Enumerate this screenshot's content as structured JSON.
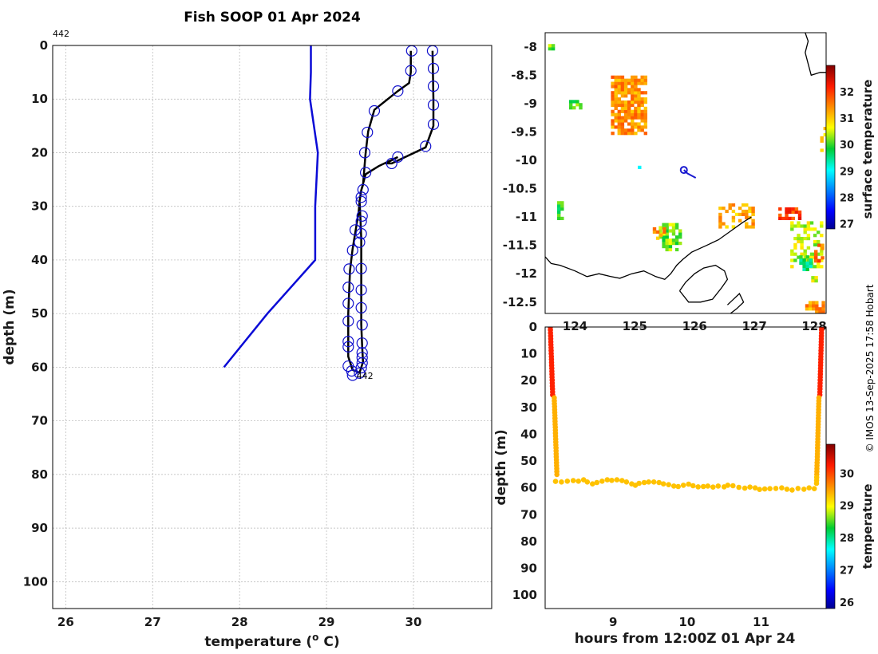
{
  "chart_data": [
    {
      "id": "profile",
      "type": "line",
      "title": "Fish SOOP 01 Apr 2024",
      "xlabel_main": "temperature (",
      "xlabel_sup": "o",
      "xlabel_tail": " C)",
      "ylabel": "depth (m)",
      "xlim": [
        25.85,
        30.9
      ],
      "ylim": [
        0,
        105
      ],
      "xticks": [
        26,
        27,
        28,
        29,
        30
      ],
      "yticks": [
        0,
        10,
        20,
        30,
        40,
        50,
        60,
        70,
        80,
        90,
        100
      ],
      "tag_top": "442",
      "tag_bottom": "442",
      "tag_bottom_pos": [
        29.4,
        61
      ],
      "colors": {
        "climatology": "#0a0ad6",
        "profile": "#000000",
        "markers": "#1010cc"
      },
      "series": [
        {
          "name": "climatology",
          "points": [
            [
              28.82,
              0
            ],
            [
              28.82,
              5
            ],
            [
              28.81,
              10
            ],
            [
              28.9,
              20
            ],
            [
              28.87,
              30
            ],
            [
              28.87,
              40
            ],
            [
              28.32,
              50
            ],
            [
              27.82,
              60
            ]
          ]
        },
        {
          "name": "profile",
          "points": [
            [
              30.22,
              1
            ],
            [
              30.23,
              10
            ],
            [
              30.23,
              15
            ],
            [
              30.14,
              19
            ],
            [
              29.75,
              22
            ],
            [
              29.68,
              22
            ],
            [
              29.82,
              20.8
            ],
            [
              29.6,
              22.5
            ],
            [
              29.45,
              24
            ],
            [
              29.4,
              27
            ],
            [
              29.38,
              29
            ],
            [
              29.37,
              31
            ],
            [
              29.34,
              34
            ],
            [
              29.3,
              38
            ],
            [
              29.27,
              42
            ],
            [
              29.26,
              46
            ],
            [
              29.25,
              50
            ],
            [
              29.25,
              54
            ],
            [
              29.25,
              58
            ],
            [
              29.3,
              60.5
            ],
            [
              29.38,
              61
            ],
            [
              29.42,
              59
            ],
            [
              29.41,
              56
            ],
            [
              29.4,
              52
            ],
            [
              29.4,
              48
            ],
            [
              29.4,
              44
            ],
            [
              29.4,
              40
            ],
            [
              29.4,
              36
            ],
            [
              29.39,
              32
            ],
            [
              29.38,
              29
            ],
            [
              29.4,
              27
            ],
            [
              29.42,
              26
            ],
            [
              29.45,
              20
            ],
            [
              29.48,
              16
            ],
            [
              29.55,
              12
            ],
            [
              29.82,
              8.5
            ],
            [
              29.95,
              7
            ],
            [
              29.97,
              5
            ],
            [
              29.97,
              1
            ]
          ]
        },
        {
          "name": "markers",
          "points": [
            [
              30.22,
              1
            ],
            [
              30.23,
              4.3
            ],
            [
              30.23,
              7.6
            ],
            [
              30.23,
              11.1
            ],
            [
              30.23,
              14.7
            ],
            [
              30.14,
              18.8
            ],
            [
              29.82,
              20.8
            ],
            [
              29.75,
              22
            ],
            [
              29.45,
              23.7
            ],
            [
              29.42,
              26.9
            ],
            [
              29.4,
              28.3
            ],
            [
              29.4,
              29.1
            ],
            [
              29.41,
              31.8
            ],
            [
              29.4,
              32.8
            ],
            [
              29.33,
              34.4
            ],
            [
              29.4,
              35.1
            ],
            [
              29.38,
              36.7
            ],
            [
              29.3,
              38.2
            ],
            [
              29.4,
              41.6
            ],
            [
              29.26,
              41.7
            ],
            [
              29.25,
              45.1
            ],
            [
              29.4,
              45.6
            ],
            [
              29.25,
              48.1
            ],
            [
              29.4,
              48.9
            ],
            [
              29.25,
              51.4
            ],
            [
              29.41,
              52.1
            ],
            [
              29.25,
              55.2
            ],
            [
              29.41,
              55.5
            ],
            [
              29.25,
              56.2
            ],
            [
              29.41,
              57.3
            ],
            [
              29.41,
              58.2
            ],
            [
              29.41,
              59.2
            ],
            [
              29.4,
              60.1
            ],
            [
              29.25,
              59.8
            ],
            [
              29.29,
              60.7
            ],
            [
              29.3,
              61.5
            ],
            [
              29.38,
              61.1
            ],
            [
              29.44,
              20
            ],
            [
              29.47,
              16.2
            ],
            [
              29.55,
              12.2
            ],
            [
              29.82,
              8.5
            ],
            [
              29.97,
              4.7
            ],
            [
              29.98,
              1
            ]
          ]
        }
      ]
    },
    {
      "id": "map",
      "type": "heatmap",
      "xlim": [
        123.5,
        128.2
      ],
      "ylim": [
        -12.7,
        -7.75
      ],
      "xticks": [
        124,
        125,
        126,
        127,
        128
      ],
      "yticks": [
        -8,
        -8.5,
        -9,
        -9.5,
        -10,
        -10.5,
        -11,
        -11.5,
        -12,
        -12.5
      ],
      "colorbar": {
        "label": "surface temperature",
        "range": [
          26.8,
          33
        ],
        "ticks": [
          27,
          28,
          29,
          30,
          31,
          32
        ]
      },
      "colors": {
        "track": "#1a1ad0",
        "coast": "#000000"
      },
      "track": [
        [
          125.82,
          -10.17
        ],
        [
          125.88,
          -10.23
        ],
        [
          125.95,
          -10.27
        ],
        [
          126.02,
          -10.31
        ]
      ],
      "track_start": [
        125.82,
        -10.17
      ],
      "patches": [
        {
          "lon": [
            124.6,
            125.2
          ],
          "lat": [
            -9.55,
            -8.55
          ],
          "value": 31.4,
          "density": 0.75
        },
        {
          "lon": [
            123.55,
            123.62
          ],
          "lat": [
            -8.06,
            -7.98
          ],
          "value": 30.2,
          "density": 1.0
        },
        {
          "lon": [
            123.9,
            124.1
          ],
          "lat": [
            -9.1,
            -8.98
          ],
          "value": 30.0,
          "density": 0.5
        },
        {
          "lon": [
            123.7,
            123.8
          ],
          "lat": [
            -11.05,
            -10.75
          ],
          "value": 29.8,
          "density": 0.6
        },
        {
          "lon": [
            125.4,
            125.75
          ],
          "lat": [
            -11.6,
            -11.15
          ],
          "value": 30.2,
          "density": 0.55
        },
        {
          "lon": [
            125.3,
            125.5
          ],
          "lat": [
            -11.4,
            -11.15
          ],
          "value": 31.3,
          "density": 0.5
        },
        {
          "lon": [
            126.4,
            127.0
          ],
          "lat": [
            -11.2,
            -10.8
          ],
          "value": 31.2,
          "density": 0.45
        },
        {
          "lon": [
            127.4,
            127.75
          ],
          "lat": [
            -11.05,
            -10.85
          ],
          "value": 32.0,
          "density": 0.7
        },
        {
          "lon": [
            127.6,
            128.15
          ],
          "lat": [
            -11.9,
            -11.1
          ],
          "value": 30.5,
          "density": 0.45
        },
        {
          "lon": [
            127.75,
            127.95
          ],
          "lat": [
            -11.95,
            -11.7
          ],
          "value": 29.6,
          "density": 0.6
        },
        {
          "lon": [
            128.0,
            128.15
          ],
          "lat": [
            -11.8,
            -11.5
          ],
          "value": 31.7,
          "density": 0.55
        },
        {
          "lon": [
            127.85,
            128.15
          ],
          "lat": [
            -12.7,
            -12.52
          ],
          "value": 31.3,
          "density": 0.85
        },
        {
          "lon": [
            125.05,
            125.1
          ],
          "lat": [
            -10.15,
            -10.1
          ],
          "value": 29.4,
          "density": 1.0
        },
        {
          "lon": [
            128.1,
            128.2
          ],
          "lat": [
            -9.85,
            -9.45
          ],
          "value": 31.0,
          "density": 0.4
        },
        {
          "lon": [
            127.95,
            128.05
          ],
          "lat": [
            -12.15,
            -12.05
          ],
          "value": 30.5,
          "density": 0.6
        }
      ],
      "coast": [
        [
          [
            123.5,
            -11.7
          ],
          [
            123.6,
            -11.82
          ],
          [
            123.75,
            -11.85
          ],
          [
            124.0,
            -11.95
          ],
          [
            124.2,
            -12.05
          ],
          [
            124.4,
            -12.0
          ],
          [
            124.6,
            -12.05
          ],
          [
            124.75,
            -12.08
          ],
          [
            124.95,
            -12.0
          ],
          [
            125.15,
            -11.95
          ],
          [
            125.35,
            -12.05
          ],
          [
            125.5,
            -12.1
          ],
          [
            125.6,
            -12.0
          ],
          [
            125.7,
            -11.85
          ],
          [
            125.8,
            -11.75
          ],
          [
            125.95,
            -11.62
          ],
          [
            126.2,
            -11.5
          ],
          [
            126.4,
            -11.4
          ],
          [
            126.6,
            -11.25
          ],
          [
            126.8,
            -11.1
          ],
          [
            126.95,
            -11.0
          ]
        ],
        [
          [
            125.75,
            -12.3
          ],
          [
            125.85,
            -12.15
          ],
          [
            126.0,
            -12.0
          ],
          [
            126.15,
            -11.9
          ],
          [
            126.35,
            -11.85
          ],
          [
            126.5,
            -11.95
          ],
          [
            126.55,
            -12.1
          ],
          [
            126.45,
            -12.25
          ],
          [
            126.3,
            -12.45
          ],
          [
            126.1,
            -12.5
          ],
          [
            125.9,
            -12.5
          ],
          [
            125.75,
            -12.3
          ]
        ],
        [
          [
            126.55,
            -12.55
          ],
          [
            126.65,
            -12.45
          ],
          [
            126.75,
            -12.35
          ],
          [
            126.82,
            -12.5
          ],
          [
            126.7,
            -12.62
          ],
          [
            126.6,
            -12.7
          ]
        ],
        [
          [
            127.85,
            -7.75
          ],
          [
            127.9,
            -7.9
          ],
          [
            127.85,
            -8.1
          ],
          [
            127.9,
            -8.3
          ],
          [
            127.95,
            -8.5
          ],
          [
            128.1,
            -8.45
          ],
          [
            128.2,
            -8.45
          ]
        ]
      ]
    },
    {
      "id": "timeseries",
      "type": "scatter",
      "xlabel": "hours from 12:00Z 01 Apr 24",
      "ylabel": "depth (m)",
      "xlim": [
        8.08,
        11.88
      ],
      "ylim": [
        0,
        105
      ],
      "xticks": [
        9,
        10,
        11
      ],
      "yticks": [
        0,
        10,
        20,
        30,
        40,
        50,
        60,
        70,
        80,
        90,
        100
      ],
      "colorbar": {
        "label": "temperature",
        "range": [
          25.8,
          30.9
        ],
        "ticks": [
          26,
          27,
          28,
          29,
          30
        ]
      },
      "down_start": 8.15,
      "up_end": 11.82,
      "bottom_points": [
        [
          8.22,
          57.6
        ],
        [
          8.3,
          57.8
        ],
        [
          8.38,
          57.5
        ],
        [
          8.46,
          57.3
        ],
        [
          8.53,
          57.5
        ],
        [
          8.6,
          57.0
        ],
        [
          8.65,
          57.8
        ],
        [
          8.72,
          58.5
        ],
        [
          8.78,
          58.0
        ],
        [
          8.85,
          57.5
        ],
        [
          8.92,
          57.0
        ],
        [
          8.98,
          57.2
        ],
        [
          9.05,
          57.0
        ],
        [
          9.12,
          57.3
        ],
        [
          9.18,
          57.8
        ],
        [
          9.25,
          58.5
        ],
        [
          9.3,
          59.0
        ],
        [
          9.35,
          58.3
        ],
        [
          9.42,
          58.0
        ],
        [
          9.48,
          57.8
        ],
        [
          9.55,
          57.8
        ],
        [
          9.62,
          58.0
        ],
        [
          9.68,
          58.5
        ],
        [
          9.75,
          58.8
        ],
        [
          9.82,
          59.3
        ],
        [
          9.88,
          59.5
        ],
        [
          9.95,
          59.0
        ],
        [
          10.02,
          58.6
        ],
        [
          10.08,
          59.2
        ],
        [
          10.15,
          59.6
        ],
        [
          10.22,
          59.5
        ],
        [
          10.28,
          59.3
        ],
        [
          10.35,
          59.7
        ],
        [
          10.42,
          59.3
        ],
        [
          10.5,
          59.6
        ],
        [
          10.55,
          59.0
        ],
        [
          10.62,
          59.2
        ],
        [
          10.7,
          59.8
        ],
        [
          10.78,
          60.1
        ],
        [
          10.85,
          59.7
        ],
        [
          10.92,
          60.0
        ],
        [
          10.98,
          60.6
        ],
        [
          11.05,
          60.4
        ],
        [
          11.12,
          60.3
        ],
        [
          11.2,
          60.2
        ],
        [
          11.28,
          60.0
        ],
        [
          11.35,
          60.5
        ],
        [
          11.42,
          60.8
        ],
        [
          11.5,
          60.2
        ],
        [
          11.58,
          60.5
        ],
        [
          11.65,
          60.0
        ],
        [
          11.72,
          60.3
        ]
      ]
    }
  ],
  "footer": {
    "credit": "© IMOS 13-Sep-2025 17:58 Hobart"
  }
}
